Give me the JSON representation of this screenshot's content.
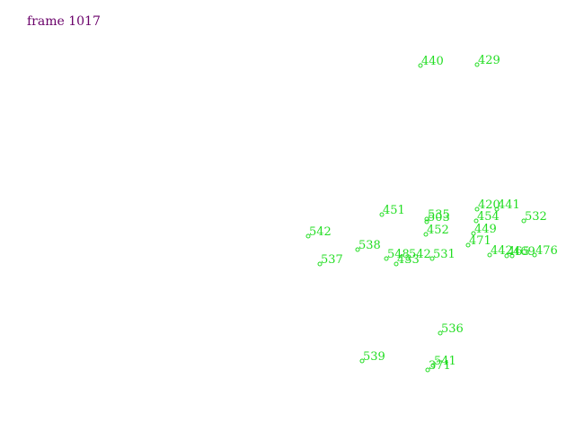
{
  "frame": {
    "label": "frame 1017"
  },
  "colors": {
    "frame_text": "#6a006a",
    "marker": "#22dd22"
  },
  "markers": [
    {
      "id": "440"
    },
    {
      "id": "429"
    },
    {
      "id": "451"
    },
    {
      "id": "535"
    },
    {
      "id": "503"
    },
    {
      "id": "420"
    },
    {
      "id": "441"
    },
    {
      "id": "454"
    },
    {
      "id": "532"
    },
    {
      "id": "542"
    },
    {
      "id": "452"
    },
    {
      "id": "449"
    },
    {
      "id": "471"
    },
    {
      "id": "538"
    },
    {
      "id": "548"
    },
    {
      "id": "433"
    },
    {
      "id": "542"
    },
    {
      "id": "531"
    },
    {
      "id": "537"
    },
    {
      "id": "442"
    },
    {
      "id": "465"
    },
    {
      "id": "469"
    },
    {
      "id": "476"
    },
    {
      "id": "536"
    },
    {
      "id": "539"
    },
    {
      "id": "541"
    },
    {
      "id": "371"
    }
  ]
}
